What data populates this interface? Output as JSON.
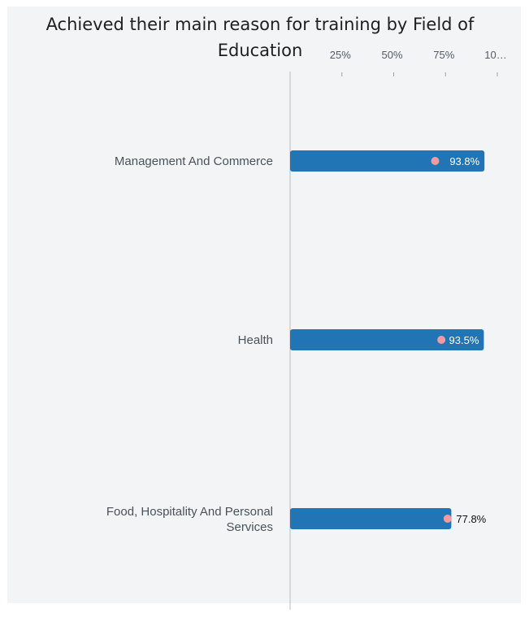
{
  "chart_data": {
    "type": "bar",
    "orientation": "horizontal",
    "title": "Achieved their main reason for training by Field of Education",
    "categories": [
      "Management And Commerce",
      "Health",
      "Food, Hospitality And Personal Services"
    ],
    "series": [
      {
        "values": [
          93.8,
          93.5,
          77.8
        ],
        "color": "#2175b4"
      },
      {
        "values": [
          70,
          73,
          76
        ],
        "color": "#f29aa0",
        "marker": "dot"
      }
    ],
    "value_labels": [
      "93.8%",
      "93.5%",
      "77.8%"
    ],
    "x_ticks": [
      "25%",
      "50%",
      "75%",
      "10…"
    ],
    "xlim": [
      0,
      100
    ],
    "grid": false,
    "legend": "none"
  }
}
